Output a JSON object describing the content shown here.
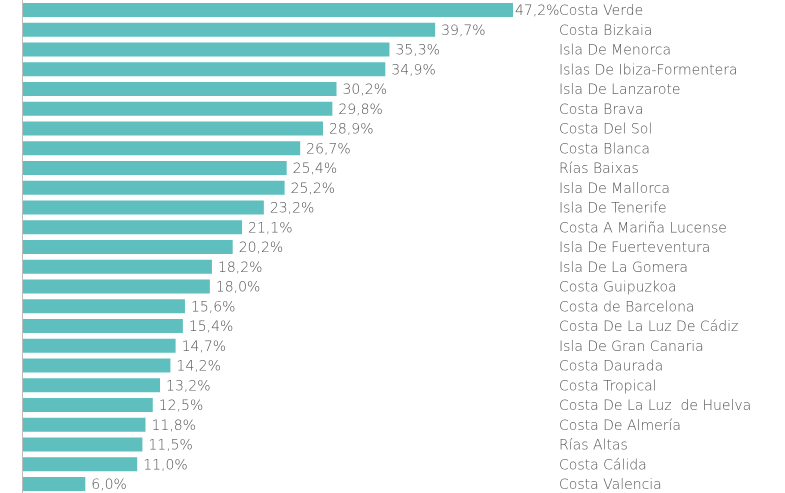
{
  "chart_data": {
    "type": "bar",
    "orientation": "horizontal",
    "color": "#5fbfbf",
    "categories": [
      "Costa Verde",
      "Costa Bizkaia",
      "Isla De Menorca",
      "Islas De Ibiza-Formentera",
      "Isla De Lanzarote",
      "Costa Brava",
      "Costa Del Sol",
      "Costa Blanca",
      "Rías Baixas",
      "Isla De Mallorca",
      "Isla De Tenerife",
      "Costa A Mariña Lucense",
      "Isla De Fuerteventura",
      "Isla De La Gomera",
      "Costa Guipuzkoa",
      "Costa de Barcelona",
      "Costa De La Luz De Cádiz",
      "Isla De Gran Canaria",
      "Costa Daurada",
      "Costa Tropical",
      "Costa De La Luz  de Huelva",
      "Costa De Almería",
      "Rías Altas",
      "Costa Cálida",
      "Costa Valencia"
    ],
    "values": [
      47.2,
      39.7,
      35.3,
      34.9,
      30.2,
      29.8,
      28.9,
      26.7,
      25.4,
      25.2,
      23.2,
      21.1,
      20.2,
      18.2,
      18.0,
      15.6,
      15.4,
      14.7,
      14.2,
      13.2,
      12.5,
      11.8,
      11.5,
      11.0,
      6.0
    ],
    "value_labels": [
      "47,2%",
      "39,7%",
      "35,3%",
      "34,9%",
      "30,2%",
      "29,8%",
      "28,9%",
      "26,7%",
      "25,4%",
      "25,2%",
      "23,2%",
      "21,1%",
      "20,2%",
      "18,2%",
      "18,0%",
      "15,6%",
      "15,4%",
      "14,7%",
      "14,2%",
      "13,2%",
      "12,5%",
      "11,8%",
      "11,5%",
      "11,0%",
      "6,0%"
    ]
  }
}
